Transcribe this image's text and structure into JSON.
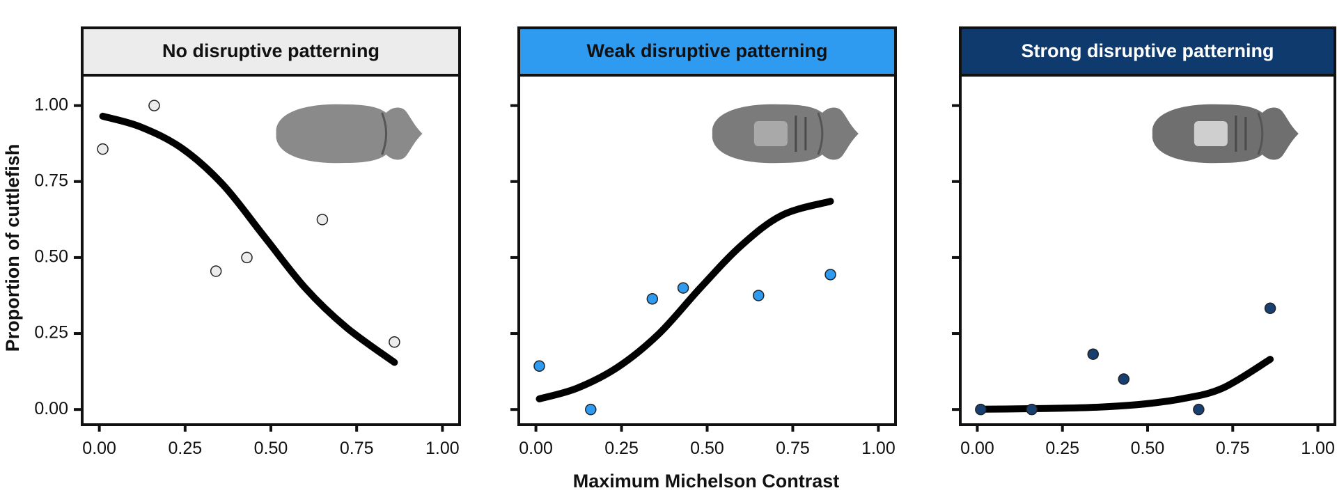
{
  "chart_data": {
    "type": "scatter",
    "ylabel": "Proportion of cuttlefish",
    "xlabel": "Maximum Michelson Contrast",
    "xlim": [
      -0.05,
      1.05
    ],
    "ylim": [
      -0.05,
      1.1
    ],
    "x_ticks": [
      "0.00",
      "0.25",
      "0.50",
      "0.75",
      "1.00"
    ],
    "y_ticks": [
      "0.00",
      "0.25",
      "0.50",
      "0.75",
      "1.00"
    ],
    "x_tick_values": [
      0,
      0.25,
      0.5,
      0.75,
      1.0
    ],
    "y_tick_values": [
      0,
      0.25,
      0.5,
      0.75,
      1.0
    ],
    "grid": false,
    "panels": [
      {
        "title": "No disruptive patterning",
        "strip_color": "#ececec",
        "strip_text_color": "#111111",
        "point_color": "#ececec",
        "x": [
          0.01,
          0.16,
          0.34,
          0.43,
          0.65,
          0.86
        ],
        "y": [
          0.857,
          1.0,
          0.455,
          0.5,
          0.625,
          0.222
        ],
        "fit": {
          "x": [
            0.01,
            0.12,
            0.24,
            0.36,
            0.48,
            0.6,
            0.72,
            0.86
          ],
          "y": [
            0.965,
            0.93,
            0.86,
            0.74,
            0.57,
            0.4,
            0.27,
            0.155
          ]
        }
      },
      {
        "title": "Weak disruptive patterning",
        "strip_color": "#2e9af0",
        "strip_text_color": "#111111",
        "point_color": "#2e9af0",
        "x": [
          0.01,
          0.16,
          0.34,
          0.43,
          0.65,
          0.86
        ],
        "y": [
          0.143,
          0.0,
          0.364,
          0.4,
          0.375,
          0.444
        ],
        "fit": {
          "x": [
            0.01,
            0.12,
            0.24,
            0.36,
            0.48,
            0.6,
            0.72,
            0.86
          ],
          "y": [
            0.035,
            0.07,
            0.14,
            0.25,
            0.4,
            0.54,
            0.64,
            0.685
          ]
        }
      },
      {
        "title": "Strong disruptive patterning",
        "strip_color": "#0e3a6e",
        "strip_text_color": "#ffffff",
        "point_color": "#173f6f",
        "x": [
          0.01,
          0.16,
          0.34,
          0.43,
          0.65,
          0.86
        ],
        "y": [
          0.0,
          0.0,
          0.182,
          0.1,
          0.0,
          0.333
        ],
        "fit": {
          "x": [
            0.01,
            0.12,
            0.24,
            0.36,
            0.48,
            0.6,
            0.72,
            0.86
          ],
          "y": [
            0.001,
            0.002,
            0.004,
            0.008,
            0.017,
            0.035,
            0.07,
            0.165
          ]
        }
      }
    ]
  },
  "icons": {
    "cuttlefish": "cuttlefish-silhouette-icon"
  }
}
